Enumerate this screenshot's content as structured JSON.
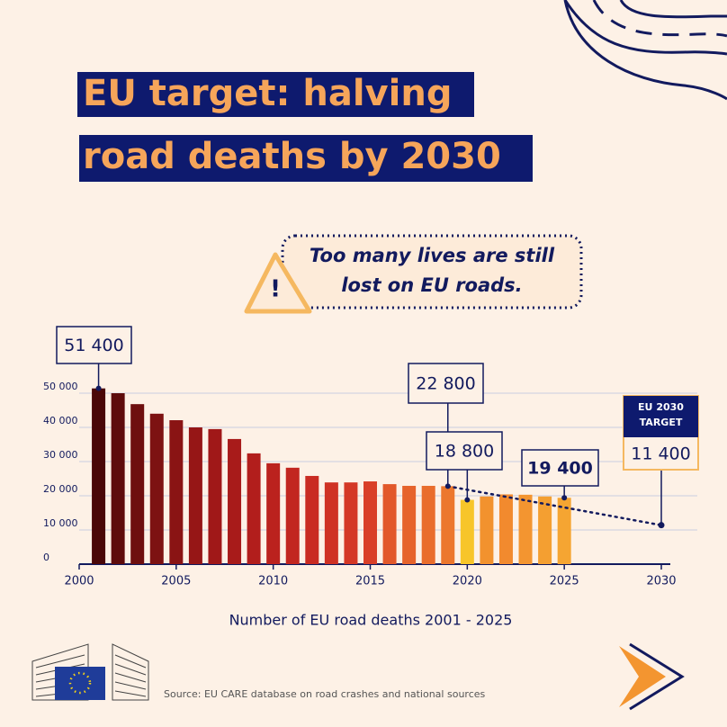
{
  "chart_data": {
    "type": "bar",
    "title": [
      "EU target: halving",
      "road deaths by 2030"
    ],
    "callout": [
      "Too many lives are still",
      "lost on EU roads."
    ],
    "x_label": "Number of EU road deaths 2001 - 2025",
    "source": "Source: EU CARE database on road crashes and national sources",
    "x": [
      2001,
      2002,
      2003,
      2004,
      2005,
      2006,
      2007,
      2008,
      2009,
      2010,
      2011,
      2012,
      2013,
      2014,
      2015,
      2016,
      2017,
      2018,
      2019,
      2020,
      2021,
      2022,
      2023,
      2024,
      2025
    ],
    "values": [
      51400,
      50000,
      46800,
      44000,
      42100,
      40000,
      39500,
      36600,
      32400,
      29500,
      28200,
      25800,
      23900,
      23900,
      24200,
      23400,
      22900,
      22900,
      22800,
      18800,
      19800,
      20400,
      20300,
      19800,
      19400
    ],
    "value_labels": [
      "51 400",
      null,
      null,
      null,
      null,
      null,
      null,
      null,
      null,
      null,
      null,
      null,
      null,
      null,
      null,
      null,
      null,
      null,
      "22 800",
      "18 800",
      null,
      null,
      null,
      null,
      "19 400"
    ],
    "colors": [
      "#4a0808",
      "#5e0c0c",
      "#6e0f0f",
      "#7d1212",
      "#8a1414",
      "#961616",
      "#a01818",
      "#a81b1a",
      "#b21e1c",
      "#bb221e",
      "#c22620",
      "#c92b22",
      "#cf3224",
      "#d43826",
      "#d93f28",
      "#e2582a",
      "#e6632b",
      "#e96d2c",
      "#ec772d",
      "#f7c52a",
      "#f2922e",
      "#f28a2e",
      "#f39530",
      "#f49f31",
      "#f5a532"
    ],
    "target": {
      "x": 2030,
      "value": 11400,
      "value_label": "11 400",
      "label": [
        "EU 2030",
        "TARGET"
      ]
    },
    "xlim": [
      2000,
      2030
    ],
    "xticks": [
      2000,
      2005,
      2010,
      2015,
      2020,
      2025,
      2030
    ],
    "ylim": [
      0,
      55000
    ],
    "yticks": [
      0,
      {
        "value": 10000,
        "label": "10 000"
      },
      {
        "value": 20000,
        "label": "20 000"
      },
      {
        "value": 30000,
        "label": "30 000"
      },
      {
        "value": 40000,
        "label": "40 000"
      },
      {
        "value": 50000,
        "label": "50 000"
      }
    ],
    "grid": true
  }
}
